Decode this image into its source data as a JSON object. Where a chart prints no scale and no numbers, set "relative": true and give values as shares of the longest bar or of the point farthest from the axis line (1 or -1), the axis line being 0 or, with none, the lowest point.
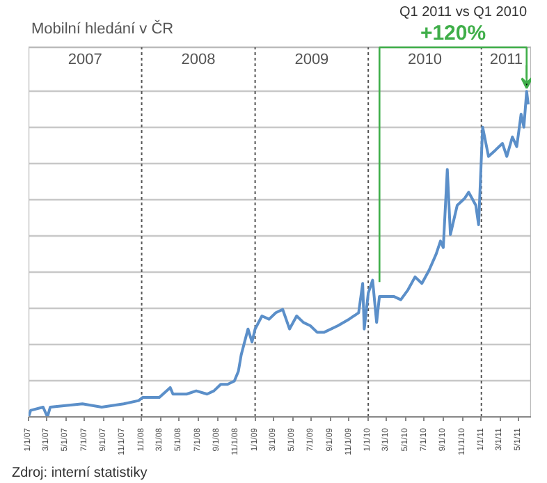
{
  "chart_data": {
    "type": "line",
    "title": "Mobilní hledání v ČR",
    "relative": true,
    "annotations": [
      "Q1 2011 vs Q1 2010",
      "+120%",
      "Zdroj: interní statistiky",
      "2007",
      "2008",
      "2009",
      "2010",
      "2011"
    ],
    "series": [
      {
        "color": "#5b8fc9",
        "x": [
          "2007-01-01",
          "2007-01-08",
          "2007-02-17",
          "2007-03-03",
          "2007-03-12",
          "2007-06-24",
          "2007-08-25",
          "2007-11-04",
          "2007-12-22",
          "2008-01-05",
          "2008-02-27",
          "2008-04-02",
          "2008-04-11",
          "2008-05-25",
          "2008-06-25",
          "2008-07-30",
          "2008-08-21",
          "2008-09-12",
          "2008-10-04",
          "2008-10-26",
          "2008-11-08",
          "2008-11-17",
          "2008-12-09",
          "2008-12-22",
          "2009-01-01",
          "2009-01-23",
          "2009-02-15",
          "2009-03-09",
          "2009-03-31",
          "2009-04-22",
          "2009-05-15",
          "2009-06-06",
          "2009-06-28",
          "2009-07-20",
          "2009-08-12",
          "2009-09-25",
          "2009-10-31",
          "2009-12-01",
          "2009-12-14",
          "2009-12-19",
          "2010-01-01",
          "2010-01-15",
          "2010-01-28",
          "2010-02-06",
          "2010-03-24",
          "2010-04-16",
          "2010-05-09",
          "2010-06-01",
          "2010-06-23",
          "2010-07-16",
          "2010-08-08",
          "2010-08-22",
          "2010-08-31",
          "2010-09-13",
          "2010-09-23",
          "2010-10-15",
          "2010-11-07",
          "2010-11-21",
          "2010-12-14",
          "2010-12-23",
          "2011-01-05",
          "2011-01-24",
          "2011-02-16",
          "2011-03-10",
          "2011-03-24",
          "2011-04-11",
          "2011-04-25",
          "2011-05-09",
          "2011-05-18",
          "2011-05-27",
          "2011-06-01"
        ],
        "values": [
          0.0,
          0.02,
          0.03,
          0.0,
          0.03,
          0.04,
          0.03,
          0.04,
          0.05,
          0.06,
          0.06,
          0.09,
          0.07,
          0.07,
          0.08,
          0.07,
          0.08,
          0.1,
          0.1,
          0.11,
          0.14,
          0.19,
          0.27,
          0.23,
          0.27,
          0.31,
          0.3,
          0.32,
          0.33,
          0.27,
          0.31,
          0.29,
          0.28,
          0.26,
          0.26,
          0.28,
          0.3,
          0.32,
          0.41,
          0.27,
          0.38,
          0.42,
          0.29,
          0.37,
          0.37,
          0.36,
          0.39,
          0.43,
          0.41,
          0.45,
          0.5,
          0.54,
          0.52,
          0.76,
          0.56,
          0.65,
          0.67,
          0.69,
          0.65,
          0.59,
          0.89,
          0.8,
          0.82,
          0.84,
          0.8,
          0.86,
          0.83,
          0.93,
          0.89,
          1.0,
          0.96
        ]
      }
    ],
    "xlim": [
      "2007-01-01",
      "2011-06-10"
    ],
    "xticks": [
      {
        "value": "2007-01-01",
        "label": "1/1/07"
      },
      {
        "value": "2007-03-01",
        "label": "3/1/07"
      },
      {
        "value": "2007-05-01",
        "label": "5/1/07"
      },
      {
        "value": "2007-07-01",
        "label": "7/1/07"
      },
      {
        "value": "2007-09-01",
        "label": "9/1/07"
      },
      {
        "value": "2007-11-01",
        "label": "11/1/07"
      },
      {
        "value": "2008-01-01",
        "label": "1/1/08"
      },
      {
        "value": "2008-03-01",
        "label": "3/1/08"
      },
      {
        "value": "2008-05-01",
        "label": "5/1/08"
      },
      {
        "value": "2008-07-01",
        "label": "7/1/08"
      },
      {
        "value": "2008-09-01",
        "label": "9/1/08"
      },
      {
        "value": "2008-11-01",
        "label": "11/1/08"
      },
      {
        "value": "2009-01-01",
        "label": "1/1/09"
      },
      {
        "value": "2009-03-01",
        "label": "3/1/09"
      },
      {
        "value": "2009-05-01",
        "label": "5/1/09"
      },
      {
        "value": "2009-07-01",
        "label": "7/1/09"
      },
      {
        "value": "2009-09-01",
        "label": "9/1/09"
      },
      {
        "value": "2009-11-01",
        "label": "11/1/09"
      },
      {
        "value": "2010-01-01",
        "label": "1/1/10"
      },
      {
        "value": "2010-03-01",
        "label": "3/1/10"
      },
      {
        "value": "2010-05-01",
        "label": "5/1/10"
      },
      {
        "value": "2010-07-01",
        "label": "7/1/10"
      },
      {
        "value": "2010-09-01",
        "label": "9/1/10"
      },
      {
        "value": "2010-11-01",
        "label": "11/1/10"
      },
      {
        "value": "2011-01-01",
        "label": "1/1/11"
      },
      {
        "value": "2011-03-01",
        "label": "3/1/11"
      },
      {
        "value": "2011-05-01",
        "label": "5/1/11"
      }
    ],
    "ref_lines": [
      {
        "axis": "x",
        "value": "2008-01-01",
        "line_style": "dashed",
        "color": "#555555"
      },
      {
        "axis": "x",
        "value": "2009-01-01",
        "line_style": "dashed",
        "color": "#555555"
      },
      {
        "axis": "x",
        "value": "2010-01-01",
        "line_style": "dashed",
        "color": "#555555"
      },
      {
        "axis": "x",
        "value": "2011-01-01",
        "line_style": "dashed",
        "color": "#555555"
      }
    ],
    "grid": "y",
    "line_style": "solid",
    "marker": "none"
  }
}
